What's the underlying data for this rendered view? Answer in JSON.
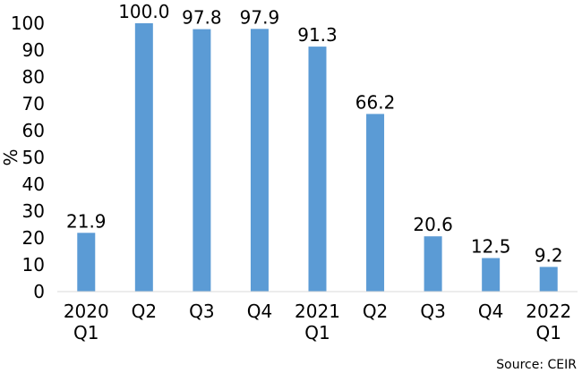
{
  "chart_data": {
    "type": "bar",
    "categories": [
      [
        "2020",
        "Q1"
      ],
      [
        "Q2"
      ],
      [
        "Q3"
      ],
      [
        "Q4"
      ],
      [
        "2021",
        "Q1"
      ],
      [
        "Q2"
      ],
      [
        "Q3"
      ],
      [
        "Q4"
      ],
      [
        "2022",
        "Q1"
      ]
    ],
    "values": [
      21.9,
      100.0,
      97.8,
      97.9,
      91.3,
      66.2,
      20.6,
      12.5,
      9.2
    ],
    "data_labels": [
      "21.9",
      "100.0",
      "97.8",
      "97.9",
      "91.3",
      "66.2",
      "20.6",
      "12.5",
      "9.2"
    ],
    "ylabel": "%",
    "ylim": [
      0,
      100
    ],
    "yticks": [
      0,
      10,
      20,
      30,
      40,
      50,
      60,
      70,
      80,
      90,
      100
    ],
    "grid": false,
    "legend": "none",
    "bar_color": "#5b9bd5",
    "axis_color": "#d9d9d9"
  },
  "source": "Source: CEIR"
}
